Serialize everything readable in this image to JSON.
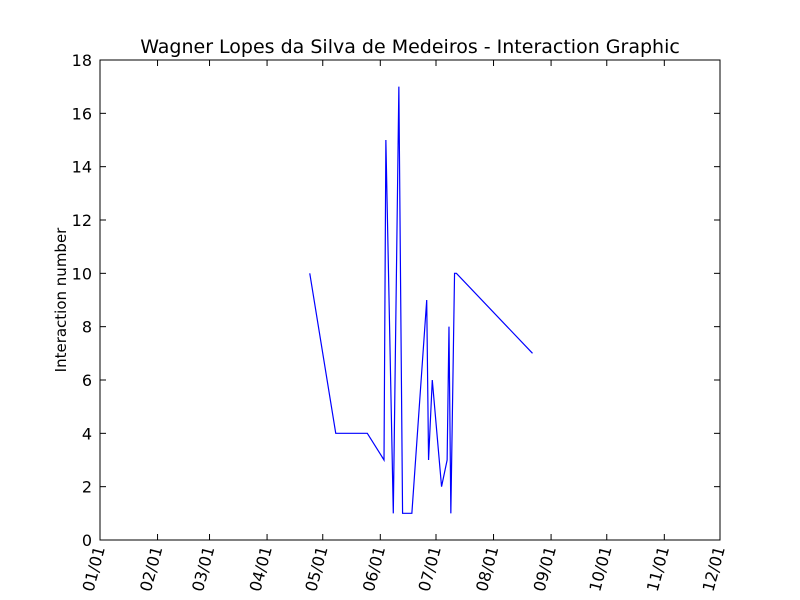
{
  "chart_data": {
    "type": "line",
    "title": "Wagner Lopes da Silva de Medeiros - Interaction Graphic",
    "xlabel": "",
    "ylabel": "Interaction number",
    "x_axis_type": "date",
    "x_tick_labels": [
      "01/01",
      "02/01",
      "03/01",
      "04/01",
      "05/01",
      "06/01",
      "07/01",
      "08/01",
      "09/01",
      "10/01",
      "11/01",
      "12/01"
    ],
    "x_ticks": [
      "01-01",
      "02-01",
      "03-01",
      "04-01",
      "05-01",
      "06-01",
      "07-01",
      "08-01",
      "09-01",
      "10-01",
      "11-01",
      "12-01"
    ],
    "xlim": [
      "01-01",
      "12-01"
    ],
    "ylim": [
      0,
      18
    ],
    "y_ticks": [
      0,
      2,
      4,
      6,
      8,
      10,
      12,
      14,
      16,
      18
    ],
    "grid": false,
    "legend": "none",
    "series": [
      {
        "color": "#0000ff",
        "points": [
          {
            "x": "04-24",
            "y": 10
          },
          {
            "x": "05-08",
            "y": 4
          },
          {
            "x": "05-25",
            "y": 4
          },
          {
            "x": "06-03",
            "y": 3
          },
          {
            "x": "06-04",
            "y": 15
          },
          {
            "x": "06-08",
            "y": 1
          },
          {
            "x": "06-11",
            "y": 17
          },
          {
            "x": "06-13",
            "y": 1
          },
          {
            "x": "06-18",
            "y": 1
          },
          {
            "x": "06-26",
            "y": 9
          },
          {
            "x": "06-27",
            "y": 3
          },
          {
            "x": "06-29",
            "y": 6
          },
          {
            "x": "07-04",
            "y": 2
          },
          {
            "x": "07-07",
            "y": 3
          },
          {
            "x": "07-08",
            "y": 8
          },
          {
            "x": "07-09",
            "y": 1
          },
          {
            "x": "07-11",
            "y": 10
          },
          {
            "x": "07-12",
            "y": 10
          },
          {
            "x": "08-22",
            "y": 7
          }
        ]
      }
    ]
  }
}
